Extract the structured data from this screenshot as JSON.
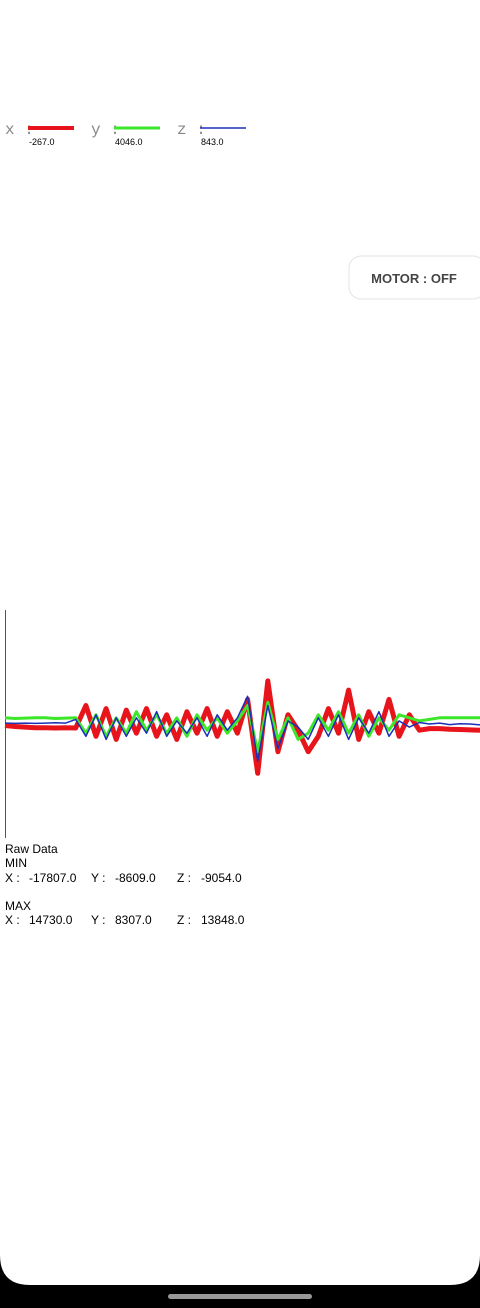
{
  "chart_data": {
    "type": "line",
    "x": [
      0,
      1,
      2,
      3,
      4,
      5,
      6,
      7,
      8,
      9,
      10,
      11,
      12,
      13,
      14,
      15,
      16,
      17,
      18,
      19,
      20,
      21,
      22,
      23,
      24,
      25,
      26,
      27,
      28,
      29,
      30,
      31,
      32,
      33,
      34,
      35,
      36,
      37,
      38,
      39,
      40,
      41,
      42,
      43,
      44,
      45,
      46,
      47
    ],
    "xlim": [
      0,
      47
    ],
    "ylim": [
      -37000,
      37000
    ],
    "series": [
      {
        "name": "x :",
        "current": "-267.0",
        "color": "#e8141b",
        "values": [
          -500,
          -800,
          -1000,
          -1200,
          -1200,
          -1300,
          -1200,
          -1300,
          6000,
          -4000,
          5000,
          -5000,
          4500,
          -3000,
          5000,
          -4000,
          3000,
          -5000,
          4000,
          -3000,
          5000,
          -4000,
          4000,
          -3000,
          8000,
          -16000,
          14000,
          -9000,
          3000,
          -2000,
          -9000,
          -4000,
          5000,
          -3000,
          11000,
          -5000,
          4000,
          -3000,
          8000,
          -4000,
          3000,
          -2000,
          -1500,
          -1500,
          -1700,
          -1800,
          -1900,
          -2000
        ]
      },
      {
        "name": "y :",
        "current": "4046.0",
        "color": "#3ee62a",
        "values": [
          2000,
          1800,
          1900,
          2000,
          2000,
          1800,
          1900,
          2000,
          -3000,
          3000,
          -4000,
          2000,
          -3000,
          4000,
          -2000,
          3000,
          -3000,
          2000,
          -4000,
          3000,
          -2000,
          2000,
          -3000,
          1000,
          6000,
          -9000,
          7000,
          -5000,
          2000,
          -5000,
          -3000,
          3000,
          -2000,
          4000,
          -3000,
          3000,
          -4000,
          2000,
          -2000,
          3000,
          2000,
          1000,
          1500,
          2000,
          2000,
          2000,
          2000,
          2000
        ]
      },
      {
        "name": "z :",
        "current": "843.0",
        "color": "#1b2fb8",
        "values": [
          300,
          200,
          300,
          200,
          300,
          400,
          300,
          1500,
          -4000,
          3000,
          -5000,
          2000,
          -4000,
          2000,
          -3000,
          4000,
          -4000,
          1000,
          -3000,
          2000,
          -4000,
          3000,
          -2000,
          2000,
          9000,
          -12000,
          6000,
          -8000,
          1000,
          -1000,
          -5000,
          2000,
          -4000,
          3000,
          -5000,
          2000,
          -3000,
          4000,
          -4000,
          1000,
          -1000,
          500,
          0,
          300,
          -200,
          100,
          0,
          -300
        ]
      }
    ]
  },
  "motor_button": "MOTOR : OFF",
  "raw": {
    "title": "Raw Data",
    "min": {
      "label": "MIN",
      "items": [
        [
          "X :",
          "-17807.0"
        ],
        [
          "Y :",
          "-8609.0"
        ],
        [
          "Z :",
          "-9054.0"
        ]
      ]
    },
    "max": {
      "label": "MAX",
      "items": [
        [
          "X :",
          "14730.0"
        ],
        [
          "Y :",
          "8307.0"
        ],
        [
          "Z :",
          "13848.0"
        ]
      ]
    }
  }
}
